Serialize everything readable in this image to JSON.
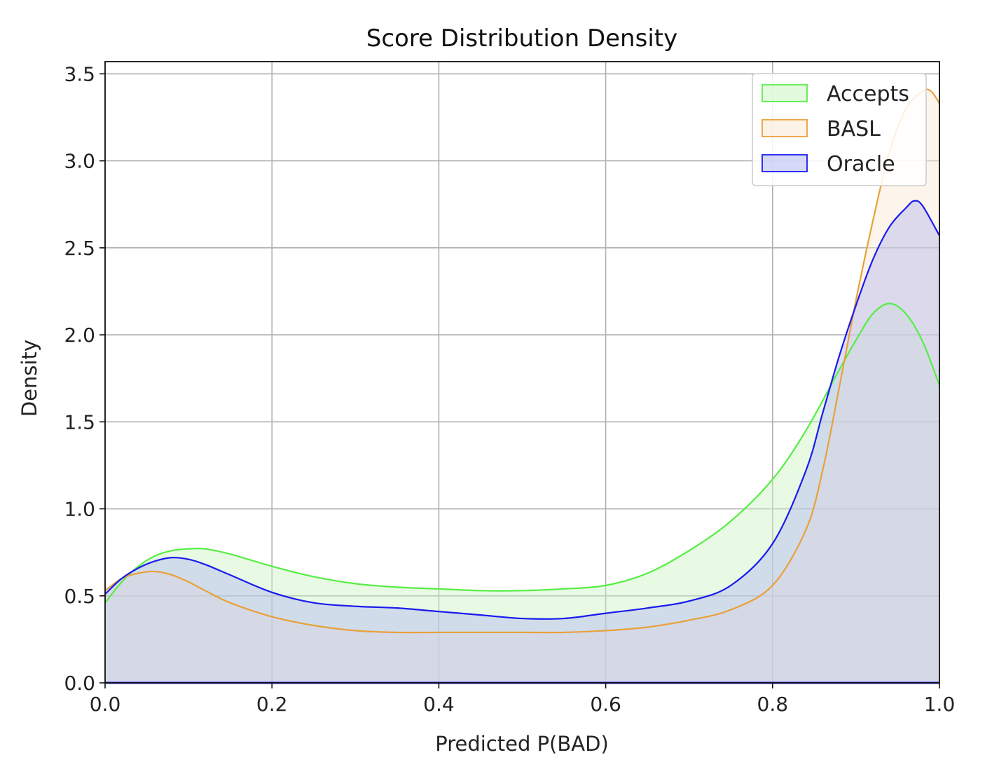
{
  "chart_data": {
    "type": "area",
    "title": "Score Distribution Density",
    "xlabel": "Predicted P(BAD)",
    "ylabel": "Density",
    "xlim": [
      0.0,
      1.0
    ],
    "ylim": [
      0.0,
      3.57
    ],
    "xticks": [
      0.0,
      0.2,
      0.4,
      0.6,
      0.8,
      1.0
    ],
    "xtick_labels": [
      "0.0",
      "0.2",
      "0.4",
      "0.6",
      "0.8",
      "1.0"
    ],
    "yticks": [
      0.0,
      0.5,
      1.0,
      1.5,
      2.0,
      2.5,
      3.0,
      3.5
    ],
    "ytick_labels": [
      "0.0",
      "0.5",
      "1.0",
      "1.5",
      "2.0",
      "2.5",
      "3.0",
      "3.5"
    ],
    "grid": true,
    "legend_position": "top-right",
    "series": [
      {
        "name": "Accepts",
        "color": "#55ee44",
        "fill": "#ccf5c4",
        "x": [
          0.0,
          0.02,
          0.04,
          0.06,
          0.08,
          0.1,
          0.12,
          0.15,
          0.2,
          0.25,
          0.3,
          0.35,
          0.4,
          0.45,
          0.5,
          0.55,
          0.6,
          0.65,
          0.7,
          0.75,
          0.8,
          0.84,
          0.88,
          0.9,
          0.92,
          0.94,
          0.96,
          0.98,
          1.0
        ],
        "y": [
          0.46,
          0.58,
          0.67,
          0.73,
          0.76,
          0.77,
          0.77,
          0.74,
          0.67,
          0.61,
          0.57,
          0.55,
          0.54,
          0.53,
          0.53,
          0.54,
          0.56,
          0.63,
          0.76,
          0.93,
          1.17,
          1.45,
          1.8,
          1.97,
          2.12,
          2.18,
          2.12,
          1.96,
          1.71
        ]
      },
      {
        "name": "BASL",
        "color": "#e8a13a",
        "fill": "#fbe8d3",
        "x": [
          0.0,
          0.02,
          0.04,
          0.06,
          0.08,
          0.1,
          0.12,
          0.15,
          0.2,
          0.25,
          0.3,
          0.35,
          0.4,
          0.45,
          0.5,
          0.55,
          0.6,
          0.65,
          0.7,
          0.75,
          0.8,
          0.84,
          0.86,
          0.88,
          0.9,
          0.92,
          0.94,
          0.96,
          0.98,
          0.99,
          1.0
        ],
        "y": [
          0.53,
          0.6,
          0.63,
          0.64,
          0.62,
          0.58,
          0.53,
          0.46,
          0.38,
          0.33,
          0.3,
          0.29,
          0.29,
          0.29,
          0.29,
          0.29,
          0.3,
          0.32,
          0.36,
          0.42,
          0.56,
          0.88,
          1.22,
          1.7,
          2.2,
          2.65,
          3.05,
          3.3,
          3.4,
          3.4,
          3.33
        ]
      },
      {
        "name": "Oracle",
        "color": "#1a1aee",
        "fill": "#b3b8f0",
        "x": [
          0.0,
          0.02,
          0.04,
          0.06,
          0.08,
          0.1,
          0.12,
          0.15,
          0.2,
          0.25,
          0.3,
          0.35,
          0.4,
          0.45,
          0.5,
          0.55,
          0.6,
          0.65,
          0.7,
          0.75,
          0.8,
          0.84,
          0.86,
          0.88,
          0.9,
          0.92,
          0.94,
          0.96,
          0.97,
          0.98,
          1.0
        ],
        "y": [
          0.51,
          0.6,
          0.66,
          0.7,
          0.72,
          0.71,
          0.68,
          0.62,
          0.52,
          0.46,
          0.44,
          0.43,
          0.41,
          0.39,
          0.37,
          0.37,
          0.4,
          0.43,
          0.47,
          0.56,
          0.8,
          1.22,
          1.55,
          1.88,
          2.17,
          2.43,
          2.62,
          2.73,
          2.77,
          2.74,
          2.57
        ]
      }
    ]
  }
}
